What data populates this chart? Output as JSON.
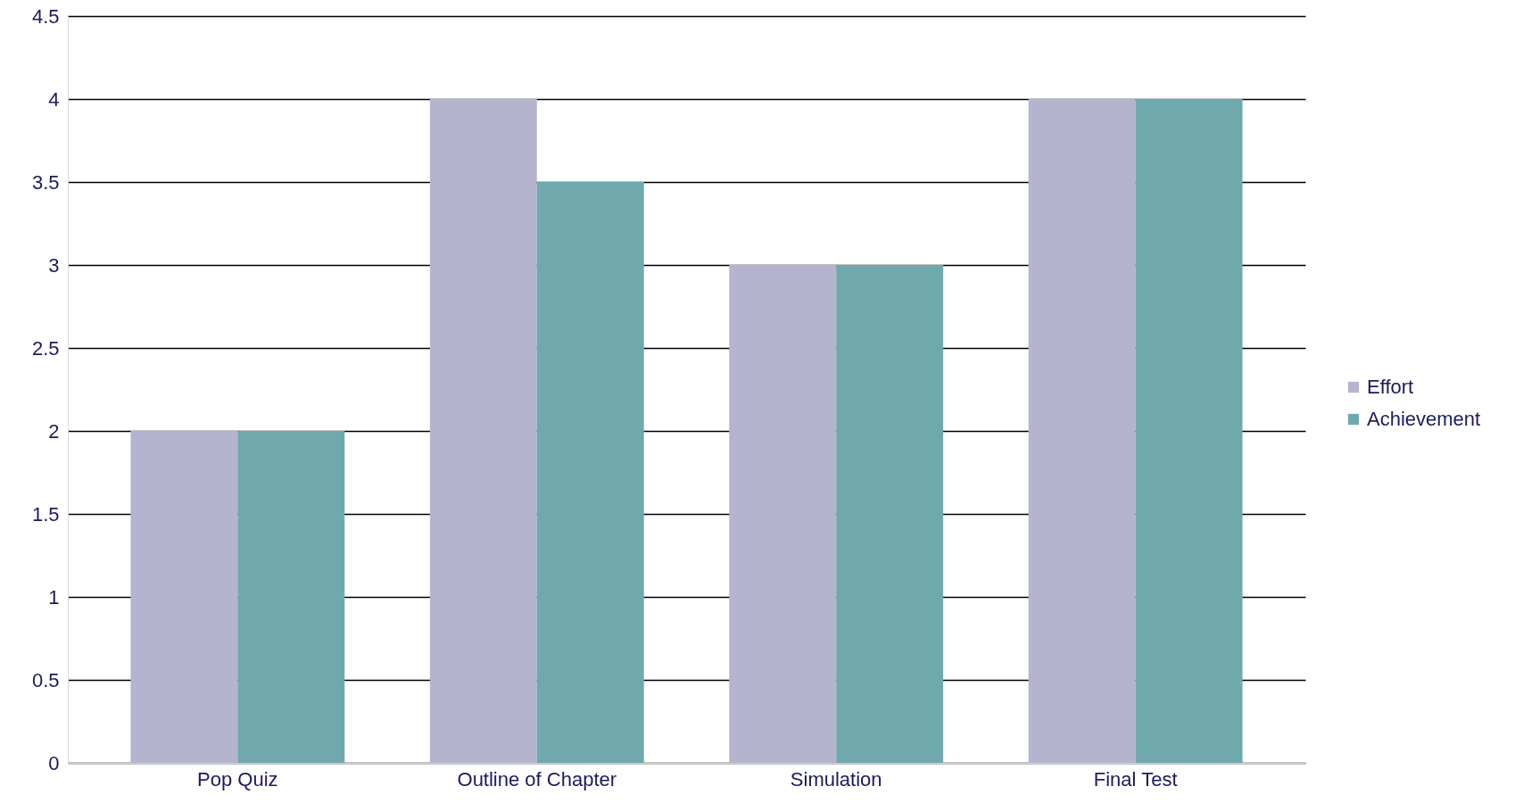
{
  "chart_data": {
    "type": "bar",
    "categories": [
      "Pop Quiz",
      "Outline of Chapter",
      "Simulation",
      "Final Test"
    ],
    "series": [
      {
        "name": "Effort",
        "color": "#b4b4cf",
        "values": [
          2,
          4,
          3,
          4
        ]
      },
      {
        "name": "Achievement",
        "color": "#6fa9ae",
        "values": [
          2,
          3.5,
          3,
          4
        ]
      }
    ],
    "ylim": [
      0,
      4.5
    ],
    "yticks": [
      0,
      0.5,
      1,
      1.5,
      2,
      2.5,
      3,
      3.5,
      4,
      4.5
    ],
    "grid": "y",
    "legend": "right"
  }
}
